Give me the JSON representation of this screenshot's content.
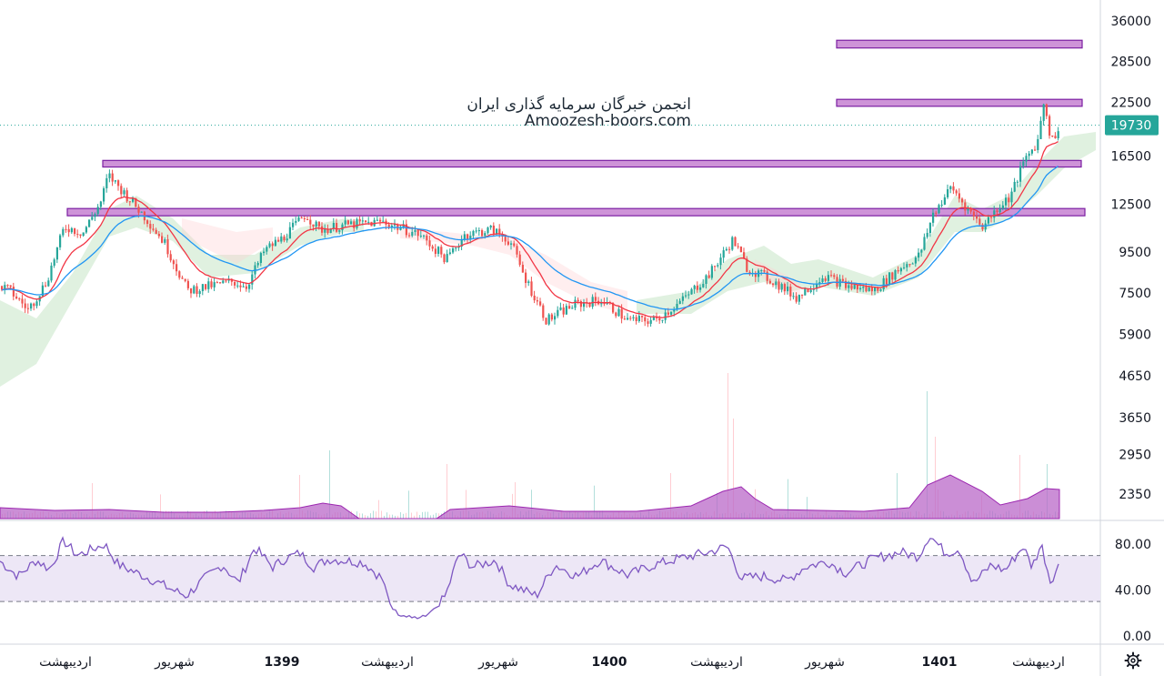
{
  "watermark": {
    "line1": "انجمن خبرگان سرمایه گذاری ایران",
    "line2": "Amoozesh-boors.com"
  },
  "current_price": "19730",
  "colors": {
    "up": "#26a69a",
    "down": "#ef5350",
    "ema_fast": "#f23645",
    "ema_slow": "#2196f3",
    "zone_fill": "#ce93d8",
    "zone_border": "#7b1fa2",
    "rsi_line": "#7e57c2",
    "rsi_band": "#ede7f6",
    "volume_ma": "#ba68c8",
    "price_tag": "#26a69a",
    "cloud_green": "#a5d6a7",
    "cloud_red": "#ffcdd2"
  },
  "icons": {
    "settings": "gear-icon"
  },
  "chart_data": {
    "type": "candlestick",
    "price_axis": {
      "scale": "log",
      "ticks": [
        "36000",
        "28500",
        "22500",
        "16500",
        "12500",
        "9500",
        "7500",
        "5900",
        "4650",
        "3650",
        "2950",
        "2350"
      ]
    },
    "rsi_axis": {
      "ticks": [
        "80.00",
        "40.00",
        "0.00"
      ],
      "upper_band": 70,
      "lower_band": 30
    },
    "time_axis": {
      "labels": [
        {
          "text": "اردیبهشت",
          "bold": false
        },
        {
          "text": "شهریور",
          "bold": false
        },
        {
          "text": "1399",
          "bold": true
        },
        {
          "text": "اردیبهشت",
          "bold": false
        },
        {
          "text": "شهریور",
          "bold": false
        },
        {
          "text": "1400",
          "bold": true
        },
        {
          "text": "اردیبهشت",
          "bold": false
        },
        {
          "text": "شهریور",
          "bold": false
        },
        {
          "text": "1401",
          "bold": true
        },
        {
          "text": "اردیبهشت",
          "bold": false
        }
      ]
    },
    "zones": [
      {
        "low": 30800,
        "high": 32200
      },
      {
        "low": 22000,
        "high": 22900
      },
      {
        "low": 15500,
        "high": 16100
      },
      {
        "low": 11700,
        "high": 12200
      }
    ],
    "price_path": [
      [
        0,
        7800
      ],
      [
        10,
        7600
      ],
      [
        30,
        6800
      ],
      [
        50,
        8000
      ],
      [
        70,
        11000
      ],
      [
        90,
        10600
      ],
      [
        110,
        12700
      ],
      [
        118,
        14800
      ],
      [
        140,
        13000
      ],
      [
        160,
        11500
      ],
      [
        180,
        10000
      ],
      [
        205,
        7600
      ],
      [
        230,
        7800
      ],
      [
        255,
        8000
      ],
      [
        270,
        7800
      ],
      [
        290,
        9600
      ],
      [
        310,
        10300
      ],
      [
        335,
        11800
      ],
      [
        350,
        10800
      ],
      [
        380,
        11100
      ],
      [
        420,
        11300
      ],
      [
        460,
        10500
      ],
      [
        490,
        9100
      ],
      [
        510,
        10500
      ],
      [
        540,
        10800
      ],
      [
        560,
        10100
      ],
      [
        575,
        8300
      ],
      [
        600,
        6400
      ],
      [
        630,
        7000
      ],
      [
        660,
        7200
      ],
      [
        690,
        6400
      ],
      [
        720,
        6400
      ],
      [
        750,
        7200
      ],
      [
        780,
        8400
      ],
      [
        805,
        10200
      ],
      [
        820,
        8700
      ],
      [
        850,
        8000
      ],
      [
        875,
        7300
      ],
      [
        905,
        8300
      ],
      [
        930,
        7800
      ],
      [
        960,
        7600
      ],
      [
        990,
        8700
      ],
      [
        1010,
        9300
      ],
      [
        1025,
        11800
      ],
      [
        1045,
        13800
      ],
      [
        1065,
        12000
      ],
      [
        1080,
        11000
      ],
      [
        1095,
        12200
      ],
      [
        1110,
        13100
      ],
      [
        1125,
        16000
      ],
      [
        1140,
        18000
      ],
      [
        1147,
        22800
      ],
      [
        1155,
        18000
      ],
      [
        1165,
        19730
      ]
    ],
    "rsi_path": [
      [
        0,
        65
      ],
      [
        20,
        52
      ],
      [
        40,
        66
      ],
      [
        55,
        58
      ],
      [
        70,
        83
      ],
      [
        85,
        70
      ],
      [
        100,
        75
      ],
      [
        115,
        80
      ],
      [
        130,
        62
      ],
      [
        150,
        55
      ],
      [
        170,
        48
      ],
      [
        190,
        40
      ],
      [
        205,
        35
      ],
      [
        225,
        50
      ],
      [
        245,
        62
      ],
      [
        262,
        46
      ],
      [
        280,
        77
      ],
      [
        300,
        60
      ],
      [
        315,
        68
      ],
      [
        330,
        72
      ],
      [
        345,
        60
      ],
      [
        362,
        67
      ],
      [
        400,
        64
      ],
      [
        420,
        50
      ],
      [
        430,
        25
      ],
      [
        440,
        18
      ],
      [
        460,
        15
      ],
      [
        470,
        18
      ],
      [
        480,
        24
      ],
      [
        490,
        35
      ],
      [
        505,
        72
      ],
      [
        520,
        60
      ],
      [
        545,
        66
      ],
      [
        560,
        45
      ],
      [
        575,
        40
      ],
      [
        590,
        35
      ],
      [
        610,
        62
      ],
      [
        635,
        52
      ],
      [
        660,
        66
      ],
      [
        690,
        53
      ],
      [
        720,
        62
      ],
      [
        750,
        68
      ],
      [
        780,
        73
      ],
      [
        800,
        78
      ],
      [
        815,
        50
      ],
      [
        840,
        52
      ],
      [
        865,
        48
      ],
      [
        885,
        60
      ],
      [
        910,
        65
      ],
      [
        930,
        55
      ],
      [
        960,
        67
      ],
      [
        990,
        73
      ],
      [
        1010,
        69
      ],
      [
        1022,
        88
      ],
      [
        1040,
        72
      ],
      [
        1055,
        76
      ],
      [
        1070,
        45
      ],
      [
        1090,
        62
      ],
      [
        1105,
        57
      ],
      [
        1125,
        78
      ],
      [
        1135,
        60
      ],
      [
        1145,
        80
      ],
      [
        1155,
        48
      ],
      [
        1165,
        62
      ]
    ]
  }
}
